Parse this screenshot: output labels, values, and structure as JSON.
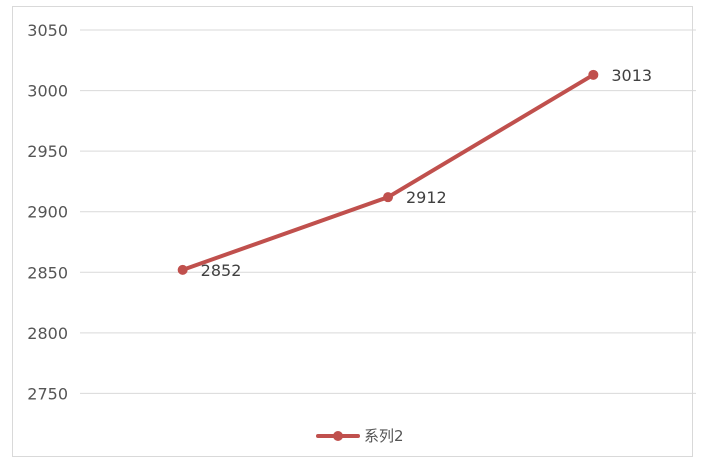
{
  "chart_data": {
    "type": "line",
    "categories": [
      "",
      "",
      ""
    ],
    "series": [
      {
        "name": "系列2",
        "values": [
          2852,
          2912,
          3013
        ],
        "color": "#c0504d"
      }
    ],
    "ylim": [
      2700,
      3050
    ],
    "yticks": [
      2750,
      2800,
      2850,
      2900,
      2950,
      3000,
      3050
    ],
    "grid": true,
    "legend_position": "bottom",
    "data_labels": true
  }
}
